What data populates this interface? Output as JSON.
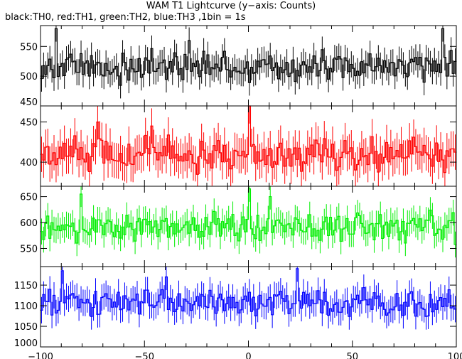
{
  "title": "WAM T1 Lightcurve (y−axis: Counts)",
  "subtitle": "black:TH0, red:TH1, green:TH2, blue:TH3 ,1bin = 1s",
  "chart_data": [
    {
      "type": "line",
      "series_name": "TH0",
      "color": "#000000",
      "xlim": [
        -100,
        100
      ],
      "ylim": [
        450,
        585
      ],
      "yticks": [
        450,
        500,
        550
      ],
      "base": 515,
      "amp": 18,
      "errbar": 22,
      "spikes": [
        [
          -93,
          580
        ],
        [
          -29,
          560
        ],
        [
          93,
          580
        ]
      ]
    },
    {
      "type": "line",
      "series_name": "TH1",
      "color": "#ff0000",
      "xlim": [
        -100,
        100
      ],
      "ylim": [
        370,
        470
      ],
      "yticks": [
        400,
        450
      ],
      "base": 410,
      "amp": 15,
      "errbar": 22,
      "spikes": [
        [
          -73,
          450
        ],
        [
          0,
          470
        ],
        [
          -47,
          445
        ]
      ]
    },
    {
      "type": "line",
      "series_name": "TH2",
      "color": "#00ee00",
      "xlim": [
        -100,
        100
      ],
      "ylim": [
        515,
        670
      ],
      "yticks": [
        550,
        600,
        650
      ],
      "base": 590,
      "amp": 20,
      "errbar": 25,
      "spikes": [
        [
          -81,
          655
        ],
        [
          0,
          665
        ],
        [
          10,
          650
        ]
      ]
    },
    {
      "type": "line",
      "series_name": "TH3",
      "color": "#0000ff",
      "xlim": [
        -100,
        100
      ],
      "ylim": [
        1000,
        1195
      ],
      "yticks": [
        1000,
        1050,
        1100,
        1150
      ],
      "base": 1105,
      "amp": 22,
      "errbar": 32,
      "spikes": [
        [
          -90,
          1185
        ],
        [
          23,
          1190
        ],
        [
          -40,
          1170
        ]
      ]
    }
  ],
  "x_axis": {
    "ticks": [
      -100,
      -50,
      0,
      50,
      100
    ]
  }
}
